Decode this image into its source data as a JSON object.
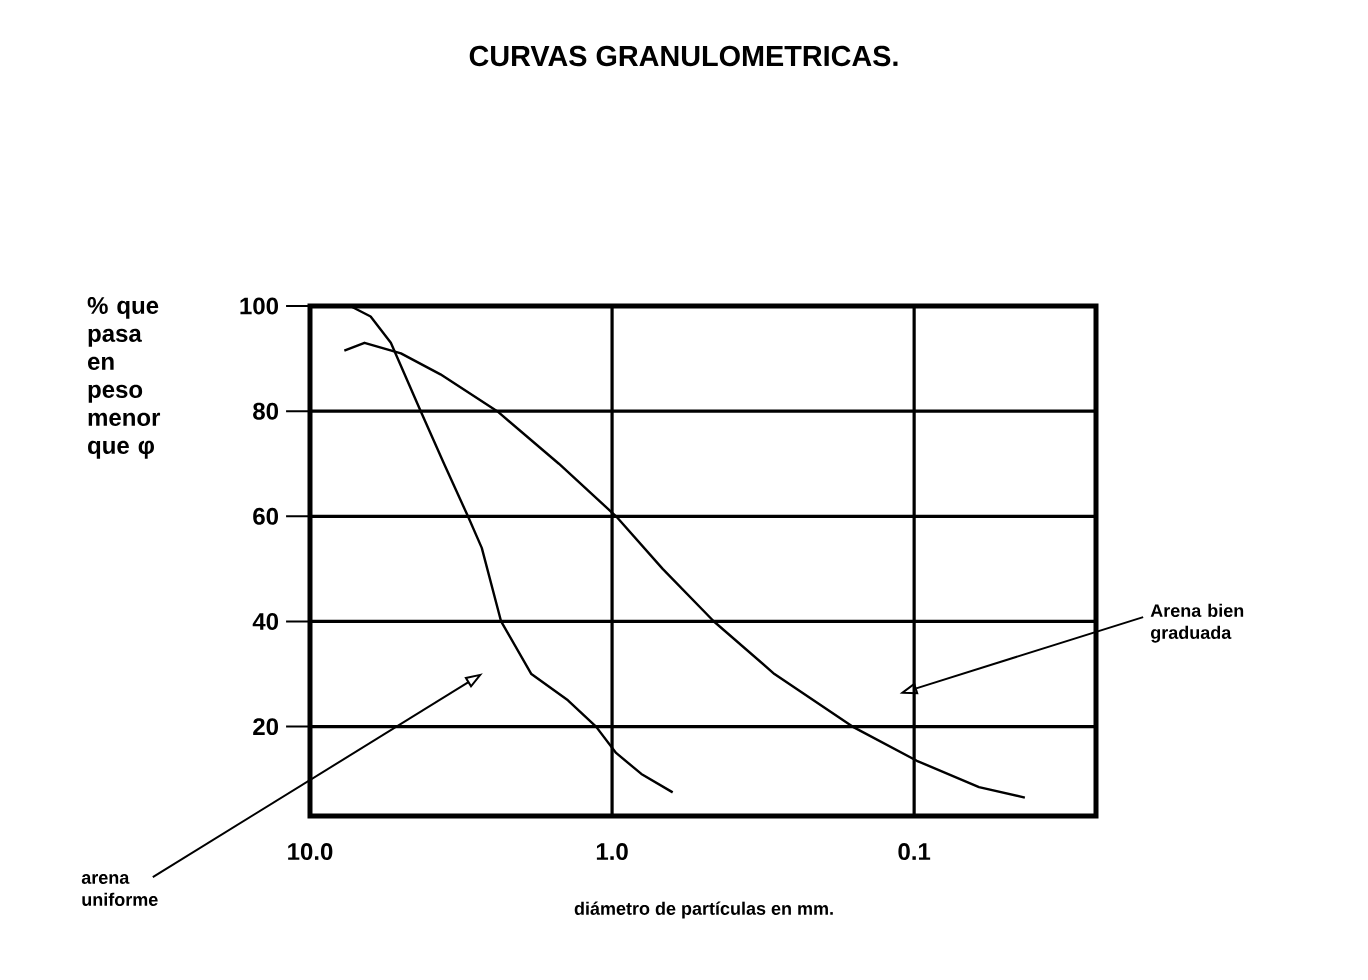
{
  "chart_data": {
    "type": "line",
    "title": "CURVAS GRANULOMETRICAS.",
    "xlabel": "diámetro de partículas en mm.",
    "ylabel": "% que pasa en peso menor que φ",
    "series": [
      {
        "color": "#000000",
        "x": [
          10,
          7.36,
          6.3,
          5.4,
          4.3,
          3.6,
          3.0,
          2.7,
          2.33,
          1.85,
          1.4,
          1.13,
          0.97,
          0.8,
          0.63
        ],
        "values": [
          100,
          100,
          98,
          93,
          80,
          70,
          60,
          54,
          40,
          30,
          25,
          20,
          15,
          11,
          7.5
        ]
      },
      {
        "color": "#000000",
        "x": [
          7.7,
          6.6,
          5.0,
          3.7,
          2.4,
          1.5,
          0.97,
          0.68,
          0.46,
          0.29,
          0.16,
          0.098,
          0.061,
          0.043
        ],
        "values": [
          91.5,
          93,
          91,
          87,
          80,
          70,
          60,
          50,
          40,
          30,
          20,
          13.5,
          8.5,
          6.5
        ]
      }
    ],
    "annotations": [
      "arena uniforme",
      "Arena bien graduada"
    ],
    "log": "x",
    "xlim": [
      10,
      0.025
    ],
    "ylim": [
      3,
      100
    ],
    "xticks": [
      {
        "value": 10,
        "label": "10.0"
      },
      {
        "value": 1,
        "label": "1.0"
      },
      {
        "value": 0.1,
        "label": "0.1"
      }
    ],
    "yticks": [
      20,
      40,
      60,
      80,
      100
    ],
    "grid": true,
    "marker": "none",
    "line_style": "solid"
  }
}
